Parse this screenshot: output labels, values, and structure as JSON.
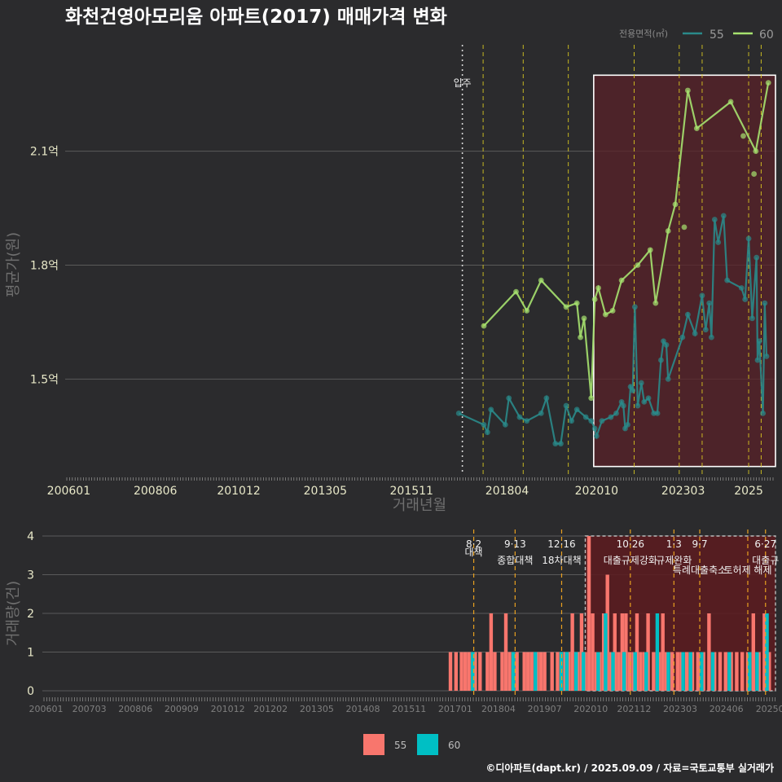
{
  "caption": "©디아파트(dapt.kr) / 2025.09.09 / 자료=국토교통부 실거래가",
  "colors": {
    "background": "#2b2b2d",
    "series_55_line": "#2a8a8a",
    "series_60_line": "#a6e26f",
    "bar_55": "#f8766d",
    "bar_60": "#00bfc4",
    "policy_line": "#e0d020",
    "policy_line_bottom": "#e8a020",
    "highlight_fill": "#5a2228",
    "highlight_border": "#ffffff"
  },
  "chart_data": [
    {
      "type": "line",
      "title": "화천건영아모리움 아파트(2017) 매매가격 변화",
      "xlabel": "거래년월",
      "ylabel": "평균가(원)",
      "legend_title": "전용면적(㎡)",
      "move_in_label": "입주",
      "move_in": 2017.0,
      "xlim": [
        2005.9,
        2025.75
      ],
      "ylim": [
        1.25,
        2.38
      ],
      "x_ticks": [
        {
          "x": 2006.0,
          "label": "200601"
        },
        {
          "x": 2008.42,
          "label": "200806"
        },
        {
          "x": 2010.75,
          "label": "201012"
        },
        {
          "x": 2013.17,
          "label": "201305"
        },
        {
          "x": 2015.58,
          "label": "201511"
        },
        {
          "x": 2018.25,
          "label": "201804"
        },
        {
          "x": 2020.75,
          "label": "202010"
        },
        {
          "x": 2023.17,
          "label": "202303"
        },
        {
          "x": 2025.0,
          "label": "2025"
        }
      ],
      "y_ticks": [
        {
          "y": 1.5,
          "label": "1.5억"
        },
        {
          "y": 1.8,
          "label": "1.8억"
        },
        {
          "y": 2.1,
          "label": "2.1억"
        }
      ],
      "policy_dates": [
        2017.58,
        2018.7,
        2019.96,
        2021.8,
        2023.06,
        2023.7,
        2025.0,
        2025.35
      ],
      "highlight": {
        "x0": 2020.67,
        "x1": 2025.75,
        "y0": 1.27,
        "y1": 2.3
      },
      "series": [
        {
          "name": "55",
          "points": [
            [
              2016.9,
              1.41
            ],
            [
              2017.6,
              1.38
            ],
            [
              2017.7,
              1.36
            ],
            [
              2017.8,
              1.42
            ],
            [
              2018.2,
              1.38
            ],
            [
              2018.3,
              1.45
            ],
            [
              2018.6,
              1.4
            ],
            [
              2018.8,
              1.39
            ],
            [
              2019.2,
              1.41
            ],
            [
              2019.35,
              1.45
            ],
            [
              2019.6,
              1.33
            ],
            [
              2019.75,
              1.33
            ],
            [
              2019.9,
              1.43
            ],
            [
              2020.05,
              1.39
            ],
            [
              2020.2,
              1.42
            ],
            [
              2020.45,
              1.4
            ],
            [
              2020.6,
              1.39
            ],
            [
              2020.7,
              1.37
            ],
            [
              2020.75,
              1.35
            ],
            [
              2020.9,
              1.39
            ],
            [
              2021.15,
              1.4
            ],
            [
              2021.3,
              1.41
            ],
            [
              2021.45,
              1.44
            ],
            [
              2021.5,
              1.43
            ],
            [
              2021.55,
              1.37
            ],
            [
              2021.62,
              1.38
            ],
            [
              2021.7,
              1.48
            ],
            [
              2021.76,
              1.47
            ],
            [
              2021.82,
              1.69
            ],
            [
              2021.9,
              1.43
            ],
            [
              2022.0,
              1.49
            ],
            [
              2022.08,
              1.44
            ],
            [
              2022.2,
              1.45
            ],
            [
              2022.35,
              1.41
            ],
            [
              2022.45,
              1.41
            ],
            [
              2022.55,
              1.55
            ],
            [
              2022.62,
              1.6
            ],
            [
              2022.7,
              1.59
            ],
            [
              2022.75,
              1.5
            ],
            [
              2023.15,
              1.61
            ],
            [
              2023.3,
              1.67
            ],
            [
              2023.5,
              1.62
            ],
            [
              2023.7,
              1.72
            ],
            [
              2023.8,
              1.63
            ],
            [
              2023.9,
              1.7
            ],
            [
              2023.96,
              1.61
            ],
            [
              2024.05,
              1.92
            ],
            [
              2024.15,
              1.86
            ],
            [
              2024.3,
              1.93
            ],
            [
              2024.4,
              1.76
            ],
            [
              2024.8,
              1.74
            ],
            [
              2024.9,
              1.71
            ],
            [
              2025.0,
              1.87
            ],
            [
              2025.1,
              1.66
            ],
            [
              2025.22,
              1.82
            ],
            [
              2025.25,
              1.55
            ],
            [
              2025.3,
              1.6
            ],
            [
              2025.4,
              1.41
            ],
            [
              2025.45,
              1.7
            ],
            [
              2025.5,
              1.56
            ]
          ]
        },
        {
          "name": "60",
          "points": [
            [
              2017.6,
              1.64
            ],
            [
              2018.5,
              1.73
            ],
            [
              2018.8,
              1.68
            ],
            [
              2019.2,
              1.76
            ],
            [
              2019.9,
              1.69
            ],
            [
              2020.2,
              1.7
            ],
            [
              2020.3,
              1.61
            ],
            [
              2020.4,
              1.66
            ],
            [
              2020.6,
              1.45
            ],
            [
              2020.7,
              1.71
            ],
            [
              2020.8,
              1.74
            ],
            [
              2021.0,
              1.67
            ],
            [
              2021.2,
              1.68
            ],
            [
              2021.45,
              1.76
            ],
            [
              2021.9,
              1.8
            ],
            [
              2022.25,
              1.84
            ],
            [
              2022.4,
              1.7
            ],
            [
              2022.75,
              1.89
            ],
            [
              2022.95,
              1.96
            ],
            [
              2023.3,
              2.26
            ],
            [
              2023.55,
              2.16
            ],
            [
              2024.5,
              2.23
            ],
            [
              2025.2,
              2.1
            ],
            [
              2025.55,
              2.28
            ]
          ],
          "extra_points": [
            [
              2023.2,
              1.9
            ],
            [
              2024.85,
              2.14
            ],
            [
              2025.15,
              2.04
            ]
          ]
        }
      ]
    },
    {
      "type": "bar",
      "ylabel": "거래량(건)",
      "xlim": [
        2005.9,
        2025.75
      ],
      "ylim": [
        0,
        4
      ],
      "y_ticks": [
        0,
        1,
        2,
        3,
        4
      ],
      "x_ticks": [
        {
          "x": 2006.0,
          "label": "200601"
        },
        {
          "x": 2007.17,
          "label": "200703"
        },
        {
          "x": 2008.42,
          "label": "200806"
        },
        {
          "x": 2009.67,
          "label": "200909"
        },
        {
          "x": 2010.92,
          "label": "201012"
        },
        {
          "x": 2012.08,
          "label": "201202"
        },
        {
          "x": 2013.33,
          "label": "201305"
        },
        {
          "x": 2014.58,
          "label": "201408"
        },
        {
          "x": 2015.83,
          "label": "201511"
        },
        {
          "x": 2017.08,
          "label": "201701"
        },
        {
          "x": 2018.25,
          "label": "201804"
        },
        {
          "x": 2019.5,
          "label": "201907"
        },
        {
          "x": 2020.75,
          "label": "202010"
        },
        {
          "x": 2021.92,
          "label": "202112"
        },
        {
          "x": 2023.17,
          "label": "202303"
        },
        {
          "x": 2024.42,
          "label": "202406"
        },
        {
          "x": 2025.6,
          "label": "20250"
        }
      ],
      "policies": [
        {
          "x": 2017.58,
          "date": "8·2",
          "text": "대책"
        },
        {
          "x": 2018.7,
          "date": "9·13",
          "text": "종합대책"
        },
        {
          "x": 2019.96,
          "date": "12·16",
          "text": "18차대책"
        },
        {
          "x": 2021.82,
          "date": "10·26",
          "text": "대출규제강화"
        },
        {
          "x": 2023.0,
          "date": "1·3",
          "text": "규제완화"
        },
        {
          "x": 2023.7,
          "date": "9·7",
          "text": "특례대출축소"
        },
        {
          "x": 2025.0,
          "date": "",
          "text": "토허제 해제"
        },
        {
          "x": 2025.48,
          "date": "6·27",
          "text": "대출규"
        }
      ],
      "highlight": {
        "x0": 2020.6,
        "x1": 2025.75
      },
      "series": [
        {
          "name": "55",
          "months": [
            [
              2016.95,
              1
            ],
            [
              2017.1,
              1
            ],
            [
              2017.25,
              1
            ],
            [
              2017.35,
              1
            ],
            [
              2017.45,
              1
            ],
            [
              2017.62,
              1
            ],
            [
              2017.75,
              1
            ],
            [
              2017.95,
              1
            ],
            [
              2018.05,
              2
            ],
            [
              2018.15,
              1
            ],
            [
              2018.35,
              1
            ],
            [
              2018.45,
              2
            ],
            [
              2018.55,
              1
            ],
            [
              2018.75,
              1
            ],
            [
              2018.95,
              1
            ],
            [
              2019.05,
              1
            ],
            [
              2019.15,
              1
            ],
            [
              2019.3,
              1
            ],
            [
              2019.4,
              1
            ],
            [
              2019.5,
              1
            ],
            [
              2019.7,
              1
            ],
            [
              2019.85,
              1
            ],
            [
              2020.05,
              1
            ],
            [
              2020.15,
              1
            ],
            [
              2020.25,
              2
            ],
            [
              2020.4,
              1
            ],
            [
              2020.5,
              2
            ],
            [
              2020.6,
              1
            ],
            [
              2020.7,
              4
            ],
            [
              2020.8,
              2
            ],
            [
              2020.9,
              1
            ],
            [
              2021.0,
              1
            ],
            [
              2021.1,
              2
            ],
            [
              2021.2,
              3
            ],
            [
              2021.3,
              1
            ],
            [
              2021.4,
              2
            ],
            [
              2021.5,
              1
            ],
            [
              2021.6,
              2
            ],
            [
              2021.7,
              2
            ],
            [
              2021.8,
              1
            ],
            [
              2021.9,
              1
            ],
            [
              2022.0,
              2
            ],
            [
              2022.1,
              1
            ],
            [
              2022.2,
              1
            ],
            [
              2022.3,
              2
            ],
            [
              2022.45,
              1
            ],
            [
              2022.6,
              1
            ],
            [
              2022.7,
              2
            ],
            [
              2022.8,
              1
            ],
            [
              2022.95,
              1
            ],
            [
              2023.1,
              1
            ],
            [
              2023.2,
              1
            ],
            [
              2023.35,
              1
            ],
            [
              2023.5,
              1
            ],
            [
              2023.65,
              1
            ],
            [
              2023.8,
              1
            ],
            [
              2023.95,
              2
            ],
            [
              2024.1,
              1
            ],
            [
              2024.25,
              1
            ],
            [
              2024.4,
              1
            ],
            [
              2024.55,
              1
            ],
            [
              2024.7,
              1
            ],
            [
              2024.85,
              1
            ],
            [
              2025.0,
              1
            ],
            [
              2025.15,
              2
            ],
            [
              2025.3,
              1
            ],
            [
              2025.45,
              2
            ],
            [
              2025.58,
              1
            ]
          ]
        },
        {
          "name": "60",
          "months": [
            [
              2017.55,
              1
            ],
            [
              2018.65,
              1
            ],
            [
              2019.25,
              1
            ],
            [
              2019.95,
              1
            ],
            [
              2020.1,
              1
            ],
            [
              2020.35,
              1
            ],
            [
              2020.55,
              1
            ],
            [
              2020.95,
              1
            ],
            [
              2021.15,
              2
            ],
            [
              2021.35,
              1
            ],
            [
              2021.65,
              1
            ],
            [
              2021.95,
              1
            ],
            [
              2022.25,
              1
            ],
            [
              2022.55,
              2
            ],
            [
              2022.85,
              1
            ],
            [
              2023.25,
              1
            ],
            [
              2023.45,
              1
            ],
            [
              2023.75,
              1
            ],
            [
              2024.05,
              1
            ],
            [
              2024.5,
              1
            ],
            [
              2025.05,
              1
            ],
            [
              2025.25,
              1
            ],
            [
              2025.52,
              2
            ]
          ]
        }
      ]
    }
  ]
}
